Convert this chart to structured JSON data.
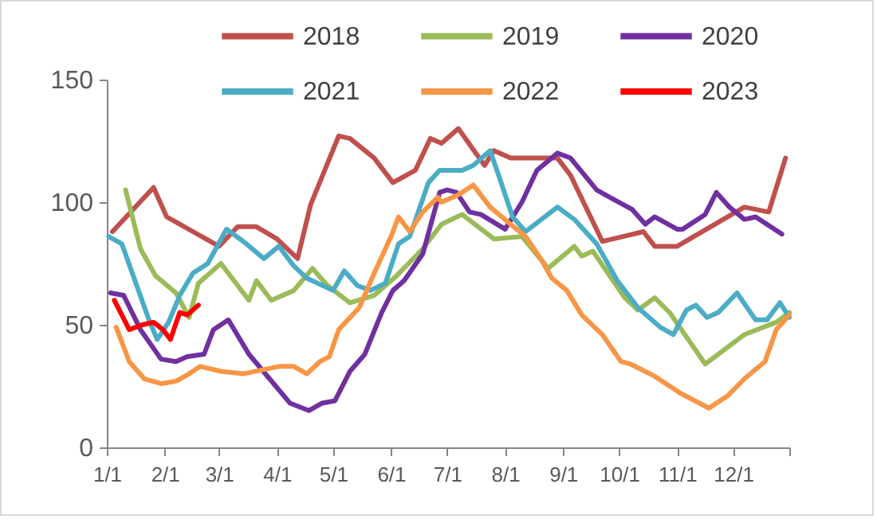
{
  "chart_data": {
    "type": "line",
    "xlim": [
      "--01-01",
      "--12-31"
    ],
    "ylim": [
      0,
      150
    ],
    "yticks": [
      0,
      50,
      100,
      150
    ],
    "xticks": [
      {
        "value": "--01-01",
        "label": "1/1"
      },
      {
        "value": "--02-01",
        "label": "2/1"
      },
      {
        "value": "--03-01",
        "label": "3/1"
      },
      {
        "value": "--04-01",
        "label": "4/1"
      },
      {
        "value": "--05-01",
        "label": "5/1"
      },
      {
        "value": "--06-01",
        "label": "6/1"
      },
      {
        "value": "--07-01",
        "label": "7/1"
      },
      {
        "value": "--08-01",
        "label": "8/1"
      },
      {
        "value": "--09-01",
        "label": "9/1"
      },
      {
        "value": "--10-01",
        "label": "10/1"
      },
      {
        "value": "--11-01",
        "label": "11/1"
      },
      {
        "value": "--12-01",
        "label": "12/1"
      },
      {
        "value": "--12-31",
        "label": null
      }
    ],
    "grid": false,
    "legend": "top",
    "line_style": "solid",
    "marker": "none",
    "series": [
      {
        "name": "2018",
        "color": "#c0504d",
        "x": [
          "--01-04",
          "--01-26",
          "--02-02",
          "--03-01",
          "--03-11",
          "--03-21",
          "--04-01",
          "--04-12",
          "--04-19",
          "--05-04",
          "--05-10",
          "--05-23",
          "--06-02",
          "--06-14",
          "--06-22",
          "--06-28",
          "--07-07",
          "--07-21",
          "--07-26",
          "--08-04",
          "--08-29",
          "--09-05",
          "--09-22",
          "--10-14",
          "--10-20",
          "--11-01",
          "--12-07",
          "--12-20",
          "--12-29"
        ],
        "values": [
          88,
          106,
          94,
          82,
          90,
          90,
          85,
          77,
          99,
          127,
          126,
          118,
          108,
          113,
          126,
          124,
          130,
          115,
          121,
          118,
          118,
          111,
          84,
          88,
          82,
          82,
          98,
          96,
          118
        ]
      },
      {
        "name": "2019",
        "color": "#9bbb59",
        "x": [
          "--01-11",
          "--01-19",
          "--01-27",
          "--02-07",
          "--02-14",
          "--02-19",
          "--03-02",
          "--03-17",
          "--03-21",
          "--03-29",
          "--04-10",
          "--04-20",
          "--04-28",
          "--05-10",
          "--05-23",
          "--06-04",
          "--06-18",
          "--06-28",
          "--07-09",
          "--07-26",
          "--08-10",
          "--08-24",
          "--09-07",
          "--09-11",
          "--09-17",
          "--10-04",
          "--10-11",
          "--10-20",
          "--10-28",
          "--11-16",
          "--12-07",
          "--12-24",
          "--12-31"
        ],
        "values": [
          105,
          81,
          70,
          63,
          53,
          67,
          75,
          60,
          68,
          60,
          64,
          73,
          66,
          59,
          62,
          70,
          81,
          91,
          95,
          85,
          86,
          73,
          82,
          78,
          80,
          61,
          56,
          61,
          55,
          34,
          46,
          51,
          55
        ]
      },
      {
        "name": "2020",
        "color": "#7030a0",
        "x": [
          "--01-03",
          "--01-10",
          "--01-19",
          "--01-30",
          "--02-07",
          "--02-13",
          "--02-22",
          "--02-27",
          "--03-06",
          "--03-17",
          "--03-28",
          "--04-08",
          "--04-18",
          "--04-25",
          "--05-02",
          "--05-10",
          "--05-18",
          "--05-27",
          "--06-02",
          "--06-08",
          "--06-18",
          "--06-27",
          "--07-01",
          "--07-06",
          "--07-13",
          "--07-19",
          "--08-01",
          "--08-10",
          "--08-18",
          "--08-29",
          "--09-05",
          "--09-19",
          "--09-26",
          "--10-08",
          "--10-15",
          "--10-20",
          "--11-01",
          "--11-04",
          "--11-16",
          "--11-22",
          "--11-29",
          "--12-07",
          "--12-13",
          "--12-27"
        ],
        "values": [
          63,
          62,
          48,
          36,
          35,
          37,
          38,
          48,
          52,
          38,
          28,
          18,
          15,
          18,
          19,
          31,
          38,
          55,
          64,
          68,
          79,
          104,
          105,
          104,
          96,
          95,
          89,
          100,
          113,
          120,
          118,
          105,
          102,
          97,
          91,
          94,
          89,
          89,
          95,
          104,
          98,
          93,
          94,
          87
        ]
      },
      {
        "name": "2021",
        "color": "#4bacc6",
        "x": [
          "--01-02",
          "--01-09",
          "--01-17",
          "--01-24",
          "--01-28",
          "--02-03",
          "--02-09",
          "--02-16",
          "--02-24",
          "--03-05",
          "--03-14",
          "--03-25",
          "--04-02",
          "--04-10",
          "--04-17",
          "--05-01",
          "--05-07",
          "--05-14",
          "--05-21",
          "--05-29",
          "--06-05",
          "--06-11",
          "--06-21",
          "--06-27",
          "--07-09",
          "--07-15",
          "--07-24",
          "--07-29",
          "--08-05",
          "--08-12",
          "--08-29",
          "--09-07",
          "--09-19",
          "--09-30",
          "--10-11",
          "--10-23",
          "--10-30",
          "--11-06",
          "--11-11",
          "--11-17",
          "--11-23",
          "--12-03",
          "--12-13",
          "--12-19",
          "--12-26",
          "--12-31"
        ],
        "values": [
          86,
          83,
          66,
          51,
          44,
          51,
          62,
          71,
          75,
          89,
          84,
          77,
          82,
          74,
          69,
          64,
          72,
          66,
          64,
          67,
          83,
          86,
          108,
          113,
          113,
          115,
          121,
          110,
          94,
          88,
          98,
          93,
          83,
          68,
          57,
          49,
          46,
          56,
          58,
          53,
          55,
          63,
          52,
          52,
          59,
          53
        ]
      },
      {
        "name": "2022",
        "color": "#f79646",
        "x": [
          "--01-06",
          "--01-13",
          "--01-21",
          "--01-30",
          "--02-07",
          "--02-14",
          "--02-20",
          "--03-02",
          "--03-14",
          "--04-02",
          "--04-10",
          "--04-17",
          "--04-24",
          "--04-29",
          "--05-04",
          "--05-15",
          "--05-23",
          "--06-01",
          "--06-05",
          "--06-11",
          "--06-18",
          "--06-26",
          "--06-28",
          "--07-07",
          "--07-15",
          "--07-24",
          "--08-04",
          "--08-12",
          "--08-20",
          "--08-26",
          "--09-03",
          "--09-11",
          "--09-22",
          "--10-02",
          "--10-07",
          "--10-20",
          "--11-03",
          "--11-18",
          "--11-28",
          "--12-07",
          "--12-18",
          "--12-24",
          "--12-31"
        ],
        "values": [
          49,
          35,
          28,
          26,
          27,
          30,
          33,
          31,
          30,
          33,
          33,
          30,
          35,
          37,
          48,
          57,
          71,
          86,
          94,
          88,
          96,
          102,
          100,
          103,
          107,
          98,
          91,
          86,
          77,
          69,
          64,
          54,
          46,
          35,
          34,
          29,
          22,
          16,
          21,
          28,
          35,
          48,
          54
        ]
      },
      {
        "name": "2023",
        "color": "#ff0000",
        "x": [
          "--01-05",
          "--01-13",
          "--01-20",
          "--01-26",
          "--01-31",
          "--02-04",
          "--02-09",
          "--02-13",
          "--02-19"
        ],
        "values": [
          60,
          48,
          50,
          51,
          48,
          44,
          55,
          54,
          58
        ]
      }
    ]
  }
}
